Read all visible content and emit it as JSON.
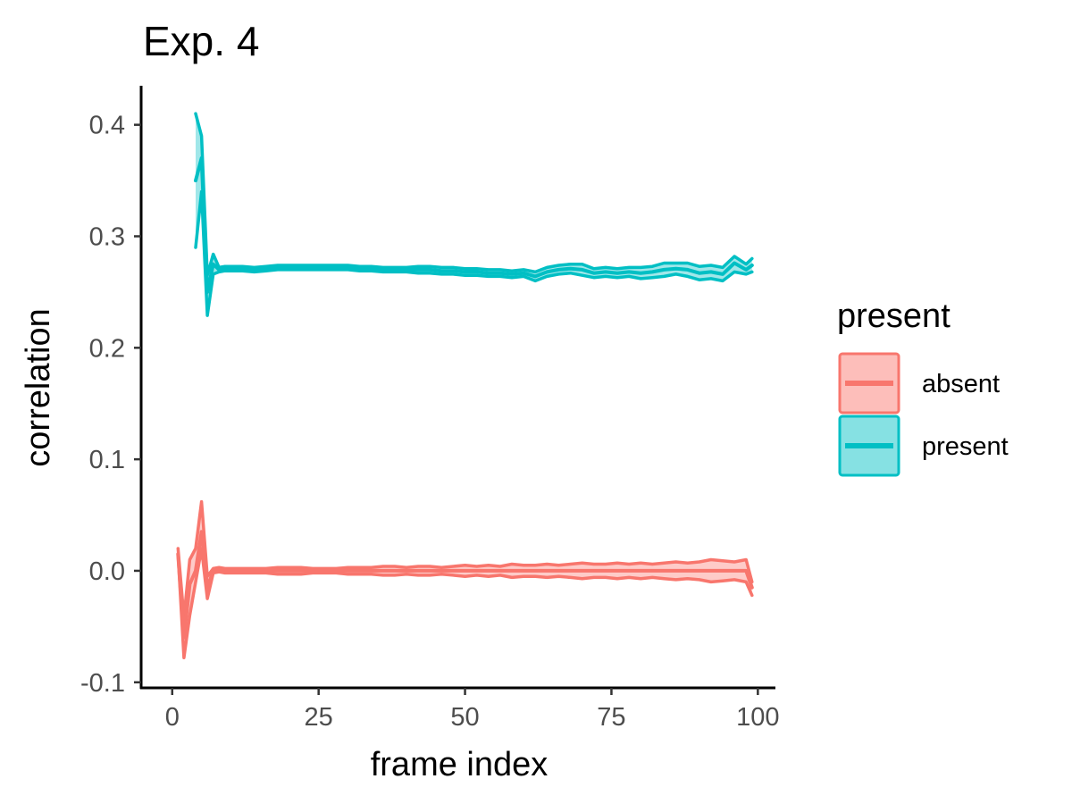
{
  "chart_data": {
    "type": "line",
    "title": "Exp. 4",
    "xlabel": "frame index",
    "ylabel": "correlation",
    "xlim": [
      -5,
      103
    ],
    "ylim": [
      -0.105,
      0.435
    ],
    "xticks": [
      0,
      25,
      50,
      75,
      100
    ],
    "xtick_labels": [
      "0",
      "25",
      "50",
      "75",
      "100"
    ],
    "yticks": [
      -0.1,
      0.0,
      0.1,
      0.2,
      0.3,
      0.4
    ],
    "ytick_labels": [
      "-0.1",
      "0.0",
      "0.1",
      "0.2",
      "0.3",
      "0.4"
    ],
    "grid": false,
    "legend": {
      "title": "present",
      "position": "right"
    },
    "series": [
      {
        "name": "absent",
        "color": "#F8766D",
        "fill": "#FDBAB6",
        "x": [
          1,
          2,
          3,
          4,
          5,
          6,
          7,
          8,
          9,
          10,
          12,
          14,
          16,
          18,
          20,
          22,
          24,
          26,
          28,
          30,
          32,
          34,
          36,
          38,
          40,
          42,
          44,
          46,
          48,
          50,
          52,
          54,
          56,
          58,
          60,
          62,
          64,
          66,
          68,
          70,
          72,
          74,
          76,
          78,
          80,
          82,
          84,
          86,
          88,
          90,
          92,
          94,
          96,
          98,
          99
        ],
        "y": [
          0.015,
          -0.06,
          -0.012,
          0.0,
          0.035,
          -0.015,
          0.0,
          0.001,
          0.0,
          0.0,
          0.0,
          0.0,
          0.0,
          0.0,
          0.0,
          0.0,
          0.0,
          0.0,
          0.0,
          0.0,
          0.0,
          0.0,
          0.0,
          0.0,
          0.0,
          0.0,
          0.0,
          0.0,
          0.0,
          0.0,
          0.0,
          0.0,
          0.0,
          0.0,
          0.0,
          0.0,
          0.0,
          0.0,
          0.0,
          0.0,
          0.0,
          0.0,
          0.0,
          0.0,
          0.0,
          0.0,
          0.0,
          0.0,
          0.0,
          0.0,
          0.0,
          0.0,
          0.0,
          0.0,
          -0.015
        ],
        "y_low": [
          0.015,
          -0.078,
          -0.04,
          -0.01,
          0.02,
          -0.025,
          -0.002,
          -0.001,
          -0.002,
          -0.002,
          -0.002,
          -0.002,
          -0.002,
          -0.003,
          -0.003,
          -0.003,
          -0.002,
          -0.002,
          -0.002,
          -0.003,
          -0.003,
          -0.003,
          -0.004,
          -0.004,
          -0.003,
          -0.004,
          -0.004,
          -0.003,
          -0.004,
          -0.005,
          -0.004,
          -0.005,
          -0.004,
          -0.006,
          -0.005,
          -0.005,
          -0.006,
          -0.005,
          -0.006,
          -0.007,
          -0.006,
          -0.006,
          -0.007,
          -0.006,
          -0.007,
          -0.006,
          -0.007,
          -0.008,
          -0.007,
          -0.008,
          -0.01,
          -0.009,
          -0.008,
          -0.01,
          -0.022
        ],
        "y_high": [
          0.02,
          -0.042,
          0.01,
          0.02,
          0.062,
          -0.005,
          0.002,
          0.003,
          0.002,
          0.002,
          0.002,
          0.002,
          0.002,
          0.003,
          0.003,
          0.003,
          0.002,
          0.002,
          0.002,
          0.003,
          0.003,
          0.003,
          0.004,
          0.004,
          0.003,
          0.004,
          0.004,
          0.003,
          0.004,
          0.005,
          0.004,
          0.005,
          0.004,
          0.006,
          0.005,
          0.005,
          0.006,
          0.005,
          0.006,
          0.007,
          0.006,
          0.006,
          0.007,
          0.006,
          0.007,
          0.006,
          0.007,
          0.008,
          0.007,
          0.008,
          0.01,
          0.009,
          0.008,
          0.01,
          -0.01
        ]
      },
      {
        "name": "present",
        "color": "#00BFC4",
        "fill": "#80DFE2",
        "x": [
          4,
          5,
          6,
          7,
          8,
          9,
          10,
          12,
          14,
          16,
          18,
          20,
          22,
          24,
          26,
          28,
          30,
          32,
          34,
          36,
          38,
          40,
          42,
          44,
          46,
          48,
          50,
          52,
          54,
          56,
          58,
          60,
          62,
          64,
          66,
          68,
          70,
          72,
          74,
          76,
          78,
          80,
          82,
          84,
          86,
          88,
          90,
          92,
          94,
          96,
          98,
          99
        ],
        "y": [
          0.35,
          0.37,
          0.25,
          0.275,
          0.27,
          0.271,
          0.271,
          0.271,
          0.27,
          0.271,
          0.272,
          0.272,
          0.272,
          0.272,
          0.272,
          0.272,
          0.272,
          0.271,
          0.271,
          0.27,
          0.27,
          0.27,
          0.27,
          0.27,
          0.269,
          0.269,
          0.268,
          0.268,
          0.267,
          0.267,
          0.266,
          0.267,
          0.264,
          0.268,
          0.27,
          0.271,
          0.27,
          0.267,
          0.268,
          0.267,
          0.268,
          0.267,
          0.268,
          0.27,
          0.271,
          0.27,
          0.267,
          0.268,
          0.266,
          0.276,
          0.27,
          0.274
        ],
        "y_low": [
          0.29,
          0.34,
          0.229,
          0.266,
          0.268,
          0.269,
          0.269,
          0.269,
          0.268,
          0.269,
          0.27,
          0.27,
          0.27,
          0.27,
          0.27,
          0.27,
          0.27,
          0.269,
          0.269,
          0.268,
          0.268,
          0.268,
          0.267,
          0.267,
          0.266,
          0.266,
          0.265,
          0.265,
          0.264,
          0.264,
          0.263,
          0.264,
          0.26,
          0.264,
          0.266,
          0.267,
          0.265,
          0.263,
          0.264,
          0.263,
          0.264,
          0.262,
          0.263,
          0.264,
          0.266,
          0.264,
          0.261,
          0.262,
          0.26,
          0.268,
          0.266,
          0.268
        ],
        "y_high": [
          0.41,
          0.39,
          0.265,
          0.284,
          0.272,
          0.273,
          0.273,
          0.273,
          0.272,
          0.273,
          0.274,
          0.274,
          0.274,
          0.274,
          0.274,
          0.274,
          0.274,
          0.273,
          0.273,
          0.272,
          0.272,
          0.272,
          0.273,
          0.273,
          0.272,
          0.272,
          0.271,
          0.271,
          0.27,
          0.27,
          0.269,
          0.27,
          0.268,
          0.272,
          0.274,
          0.275,
          0.275,
          0.271,
          0.272,
          0.271,
          0.272,
          0.272,
          0.273,
          0.276,
          0.276,
          0.276,
          0.273,
          0.274,
          0.272,
          0.282,
          0.275,
          0.28
        ]
      }
    ]
  }
}
